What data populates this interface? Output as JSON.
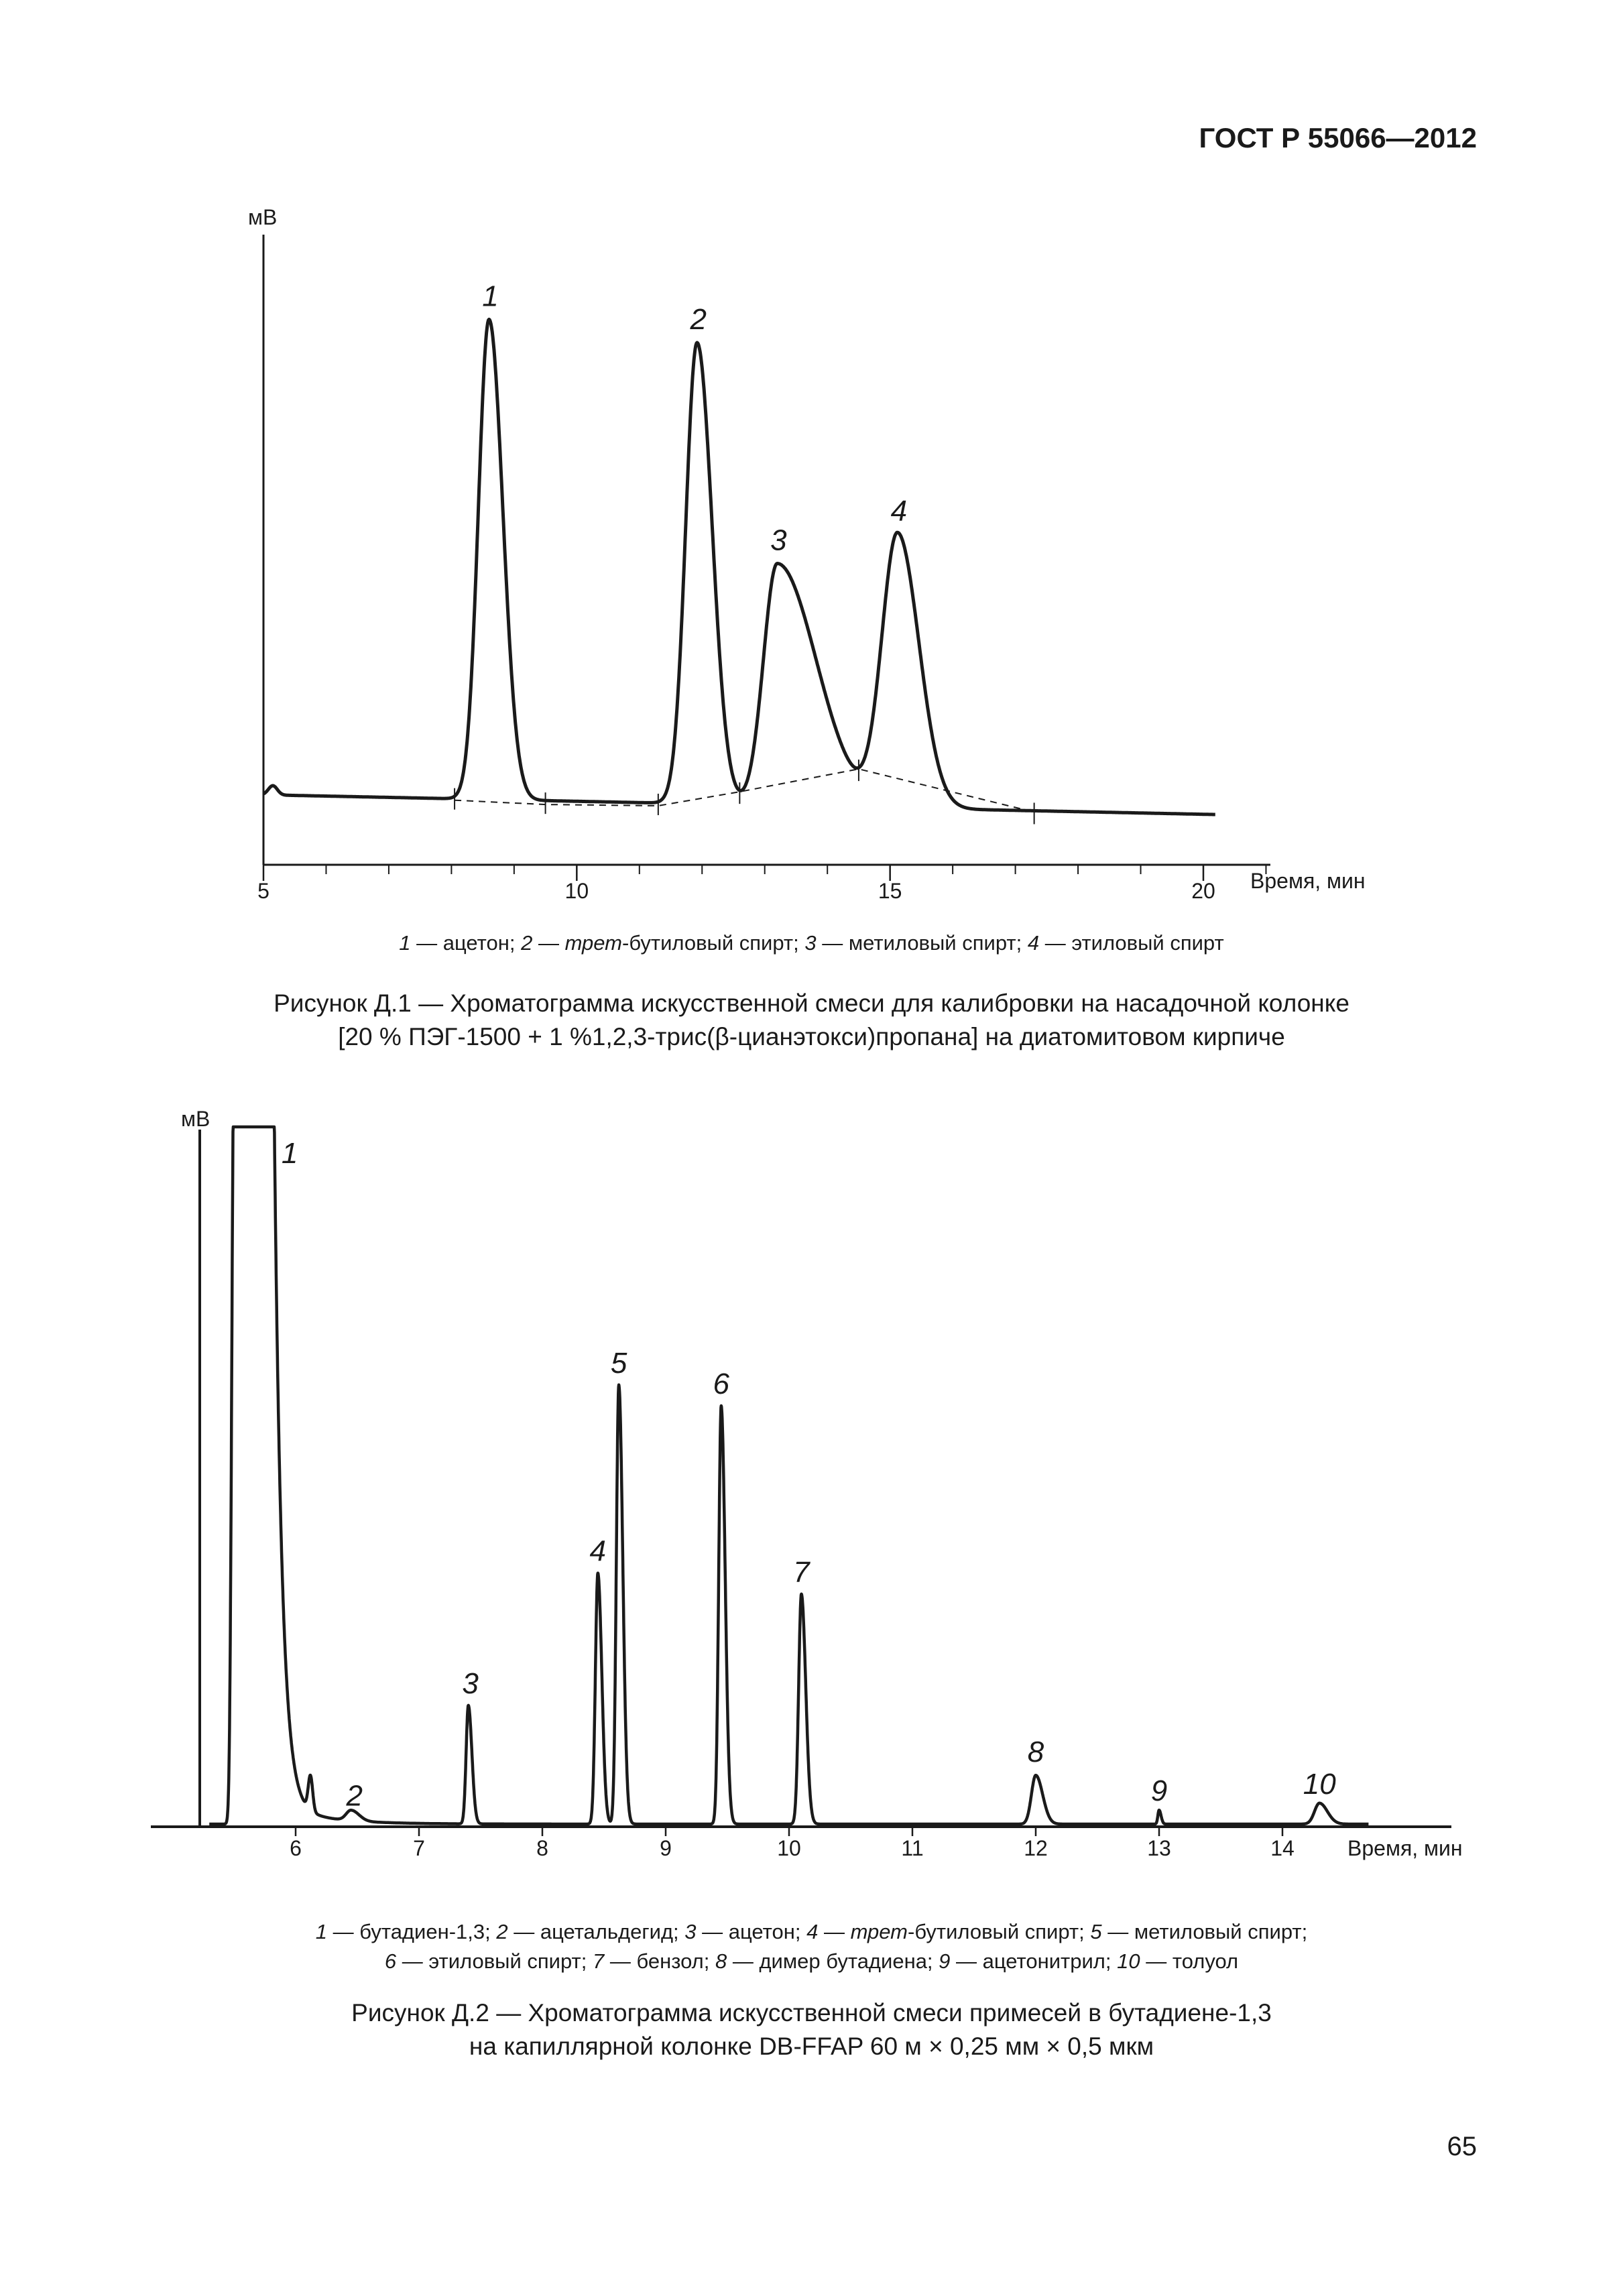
{
  "header": {
    "standard": "ГОСТ Р 55066—2012"
  },
  "page_number": "65",
  "figure1": {
    "legend": [
      {
        "num": "1",
        "pre": "",
        "italic": "",
        "post": "ацетон"
      },
      {
        "num": "2",
        "pre": "",
        "italic": "трет",
        "post": "-бутиловый спирт"
      },
      {
        "num": "3",
        "pre": "",
        "italic": "",
        "post": "метиловый спирт"
      },
      {
        "num": "4",
        "pre": "",
        "italic": "",
        "post": "этиловый спирт"
      }
    ],
    "caption_line1": "Рисунок Д.1 — Хроматограмма искусственной смеси для калибровки на насадочной колонке",
    "caption_line2": "[20 % ПЭГ-1500 + 1 %1,2,3-трис(β-цианэтокси)пропана] на диатомитовом кирпиче"
  },
  "figure2": {
    "legend_line1": [
      {
        "num": "1",
        "pre": "",
        "italic": "",
        "post": "бутадиен-1,3"
      },
      {
        "num": "2",
        "pre": "",
        "italic": "",
        "post": "ацетальдегид"
      },
      {
        "num": "3",
        "pre": "",
        "italic": "",
        "post": "ацетон"
      },
      {
        "num": "4",
        "pre": "",
        "italic": "трет",
        "post": "-бутиловый спирт"
      },
      {
        "num": "5",
        "pre": "",
        "italic": "",
        "post": "метиловый спирт"
      }
    ],
    "legend_line2": [
      {
        "num": "6",
        "pre": "",
        "italic": "",
        "post": "этиловый спирт"
      },
      {
        "num": "7",
        "pre": "",
        "italic": "",
        "post": "бензол"
      },
      {
        "num": "8",
        "pre": "",
        "italic": "",
        "post": "димер бутадиена"
      },
      {
        "num": "9",
        "pre": "",
        "italic": "",
        "post": "ацетонитрил"
      },
      {
        "num": "10",
        "pre": "",
        "italic": "",
        "post": "толуол"
      }
    ],
    "caption_line1": "Рисунок Д.2 — Хроматограмма искусственной смеси примесей в бутадиене-1,3",
    "caption_line2": "на капиллярной колонке DB-FFAP 60 м × 0,25 мм × 0,5 мкм"
  },
  "chart_data": [
    {
      "type": "line",
      "ylabel": "мВ",
      "xlabel": "Время, мин",
      "xlim": [
        5,
        21
      ],
      "ylim": [
        0,
        100
      ],
      "x_ticks": [
        5,
        10,
        15,
        20
      ],
      "x_minor_step": 1,
      "baseline": {
        "start": 4.2,
        "end": 0.8
      },
      "peaks": [
        {
          "label": "1",
          "t": 8.6,
          "h": 86,
          "wl": 0.17,
          "wr": 0.22
        },
        {
          "label": "2",
          "t": 11.92,
          "h": 82,
          "wl": 0.18,
          "wr": 0.24
        },
        {
          "label": "3",
          "t": 13.2,
          "h": 44,
          "wl": 0.22,
          "wr": 0.62
        },
        {
          "label": "4",
          "t": 15.12,
          "h": 49,
          "wl": 0.25,
          "wr": 0.34
        }
      ],
      "integration_marks": [
        8.05,
        9.5,
        11.3,
        12.6,
        14.5,
        17.3
      ]
    },
    {
      "type": "line",
      "ylabel": "мВ",
      "xlabel": "Время, мин",
      "xlim": [
        4.6,
        15.4
      ],
      "ylim": [
        0,
        100
      ],
      "x_ticks": [
        6,
        7,
        8,
        9,
        10,
        11,
        12,
        13,
        14
      ],
      "peaks": [
        {
          "label": "1",
          "t": 5.68,
          "h": 100
        },
        {
          "label": "2",
          "t": 6.45,
          "h": 1.5
        },
        {
          "label": "3",
          "t": 7.4,
          "h": 17
        },
        {
          "label": "4",
          "t": 8.45,
          "h": 36
        },
        {
          "label": "5",
          "t": 8.62,
          "h": 63
        },
        {
          "label": "6",
          "t": 9.45,
          "h": 60
        },
        {
          "label": "7",
          "t": 10.1,
          "h": 33
        },
        {
          "label": "8",
          "t": 12.0,
          "h": 7
        },
        {
          "label": "9",
          "t": 13.0,
          "h": 2
        },
        {
          "label": "10",
          "t": 14.3,
          "h": 3
        }
      ]
    }
  ]
}
